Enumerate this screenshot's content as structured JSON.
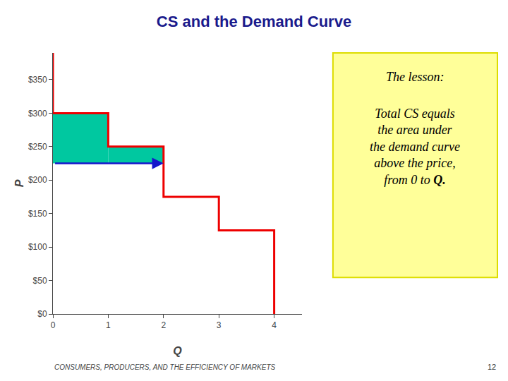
{
  "chart_data": {
    "type": "line",
    "title": "CS and the Demand Curve",
    "title_color": "#1a1a8c",
    "x_label": "Q",
    "y_label": "P",
    "xlim": [
      0,
      4.5
    ],
    "ylim": [
      0,
      390
    ],
    "xticks": [
      0,
      1,
      2,
      3,
      4
    ],
    "yticks": [
      {
        "value": 0,
        "label": "$0"
      },
      {
        "value": 50,
        "label": "$50"
      },
      {
        "value": 100,
        "label": "$100"
      },
      {
        "value": 150,
        "label": "$150"
      },
      {
        "value": 200,
        "label": "$200"
      },
      {
        "value": 250,
        "label": "$250"
      },
      {
        "value": 300,
        "label": "$300"
      },
      {
        "value": 350,
        "label": "$350"
      }
    ],
    "grid": false,
    "series": [
      {
        "type": "area",
        "color": "#00c8a0",
        "x": [
          0,
          1
        ],
        "base": [
          225,
          225
        ],
        "values": [
          300,
          300
        ]
      },
      {
        "type": "area",
        "color": "#00c8a0",
        "x": [
          1,
          2
        ],
        "base": [
          225,
          225
        ],
        "values": [
          250,
          250
        ]
      },
      {
        "type": "line",
        "color": "#ee0000",
        "x": [
          0,
          0,
          1,
          1,
          2,
          2,
          3,
          3,
          4,
          4
        ],
        "values": [
          390,
          300,
          300,
          250,
          250,
          175,
          175,
          125,
          125,
          0
        ]
      },
      {
        "type": "arrow",
        "color": "#1515cc",
        "x": [
          0.02,
          2.0
        ],
        "values": [
          225,
          225
        ]
      }
    ],
    "annotations": [
      {
        "text": "The lesson:",
        "background": "#ffff99",
        "border": "#dddd00"
      },
      {
        "text": "Total CS equals\nthe area under\nthe demand curve\nabove the price,\nfrom 0 to ",
        "bold_end": "Q."
      },
      {
        "text": "CONSUMERS, PRODUCERS, AND THE EFFICIENCY OF MARKETS"
      },
      {
        "text": "12"
      }
    ]
  }
}
